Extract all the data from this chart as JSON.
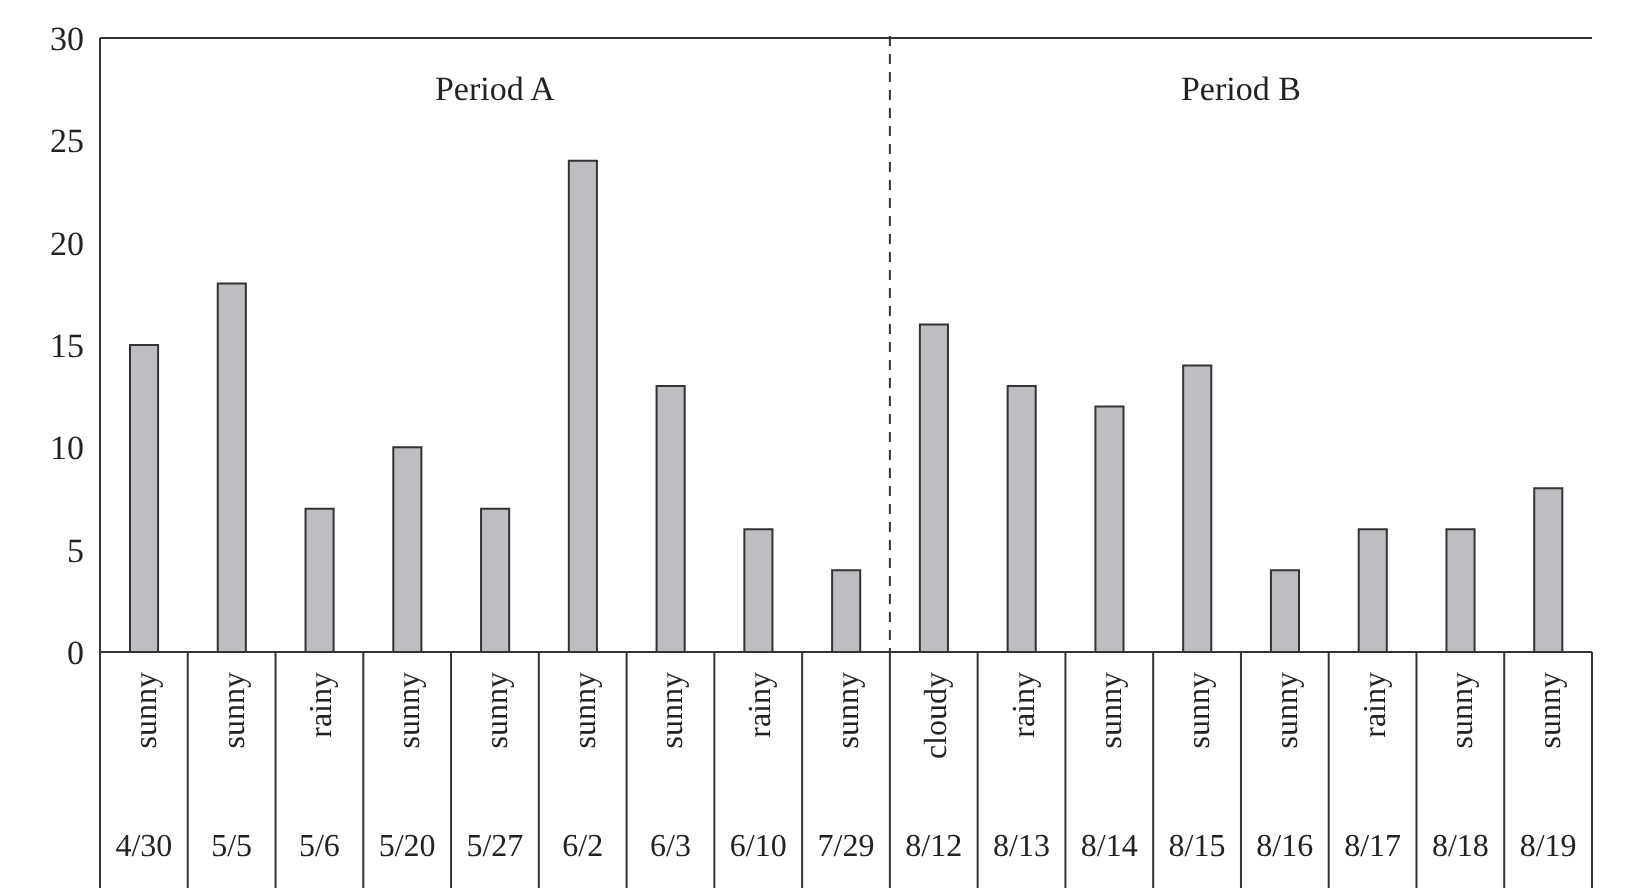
{
  "chart_data": {
    "type": "bar",
    "categories": [
      "4/30",
      "5/5",
      "5/6",
      "5/20",
      "5/27",
      "6/2",
      "6/3",
      "6/10",
      "7/29",
      "8/12",
      "8/13",
      "8/14",
      "8/15",
      "8/16",
      "8/17",
      "8/18",
      "8/19"
    ],
    "values": [
      15,
      18,
      7,
      10,
      7,
      24,
      13,
      6,
      4,
      16,
      13,
      12,
      14,
      4,
      6,
      6,
      8
    ],
    "color": "#bdbec2",
    "ylim": [
      0,
      30
    ],
    "yticks": [
      0,
      5,
      10,
      15,
      20,
      25,
      30
    ],
    "grid": false,
    "annotations": [
      "sunny",
      "sunny",
      "rainy",
      "sunny",
      "sunny",
      "sunny",
      "sunny",
      "rainy",
      "sunny",
      "cloudy",
      "rainy",
      "sunny",
      "sunny",
      "sunny",
      "rainy",
      "sunny",
      "sunny",
      "Period A",
      "Period B"
    ]
  }
}
